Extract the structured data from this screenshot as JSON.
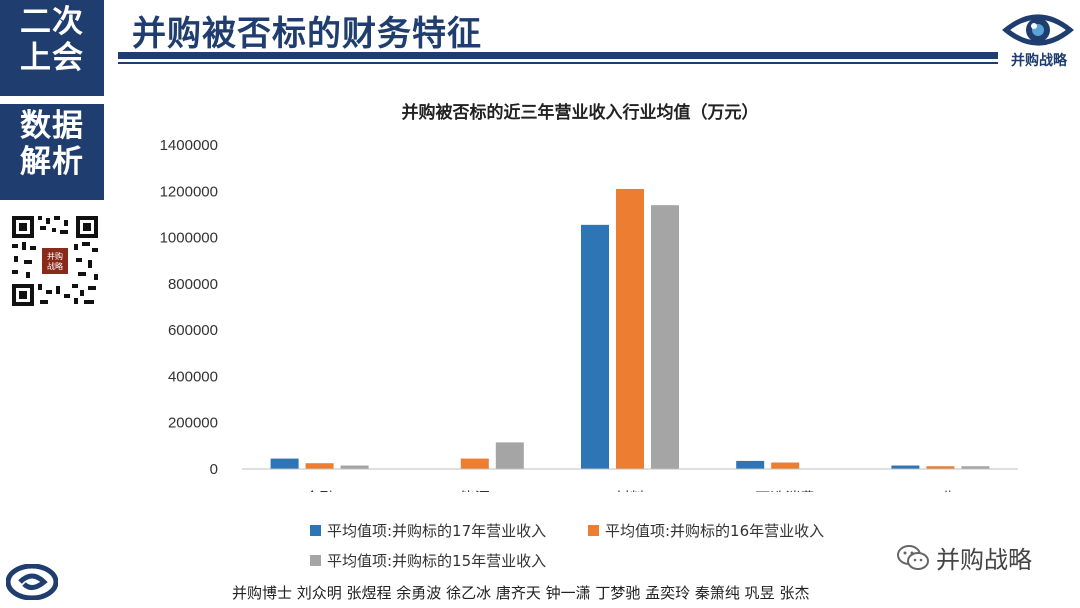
{
  "sidebar": {
    "block1": [
      "二次",
      "上会"
    ],
    "block2": [
      "数据",
      "解析"
    ]
  },
  "header": {
    "title": "并购被否标的财务特征",
    "logo_text": "并购战略",
    "qr_badge": [
      "并购",
      "战略"
    ]
  },
  "colors": {
    "navy": "#1f3d6e",
    "series17": "#2e75b6",
    "series16": "#ed7d31",
    "series15": "#a5a5a5"
  },
  "chart_data": {
    "type": "bar",
    "title": "并购被否标的近三年营业收入行业均值（万元）",
    "categories": [
      "金融",
      "能源",
      "材料",
      "可选消费",
      "工业"
    ],
    "ylim": [
      0,
      1400000
    ],
    "yticks": [
      "0",
      "200000",
      "400000",
      "600000",
      "800000",
      "1000000",
      "1200000",
      "1400000"
    ],
    "grid": false,
    "legend_position": "bottom",
    "series": [
      {
        "name": "平均值项:并购标的17年营业收入",
        "values": [
          45000,
          0,
          1055000,
          35000,
          15000
        ]
      },
      {
        "name": "平均值项:并购标的16年营业收入",
        "values": [
          25000,
          45000,
          1210000,
          28000,
          12000
        ]
      },
      {
        "name": "平均值项:并购标的15年营业收入",
        "values": [
          15000,
          115000,
          1140000,
          0,
          12000
        ]
      }
    ]
  },
  "footer": {
    "watermark": "并购战略",
    "credits": "并购博士 刘众明 张煜程 余勇波 徐乙冰 唐齐天 钟一潇 丁梦驰 孟奕玲 秦箫纯 巩昱 张杰"
  }
}
